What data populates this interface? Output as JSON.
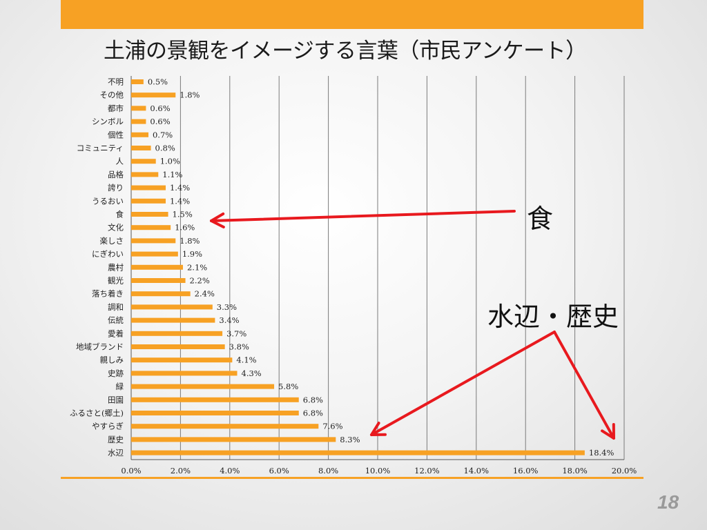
{
  "slide": {
    "title": "土浦の景観をイメージする言葉（市民アンケート）",
    "page_number": "18",
    "accent_color": "#f7a124"
  },
  "callouts": {
    "food": "食",
    "waterside_history": "水辺・歴史",
    "arrow_color": "#e8191e"
  },
  "chart_data": {
    "type": "bar",
    "orientation": "horizontal",
    "title": "",
    "xlabel": "",
    "ylabel": "",
    "xlim": [
      0,
      20
    ],
    "x_ticks": [
      "0.0%",
      "2.0%",
      "4.0%",
      "6.0%",
      "8.0%",
      "10.0%",
      "12.0%",
      "14.0%",
      "16.0%",
      "18.0%",
      "20.0%"
    ],
    "grid": "vertical",
    "bar_color": "#f7a124",
    "categories": [
      "不明",
      "その他",
      "都市",
      "シンボル",
      "個性",
      "コミュニティ",
      "人",
      "品格",
      "誇り",
      "うるおい",
      "食",
      "文化",
      "楽しさ",
      "にぎわい",
      "農村",
      "観光",
      "落ち着き",
      "調和",
      "伝統",
      "愛着",
      "地域ブランド",
      "親しみ",
      "史跡",
      "緑",
      "田園",
      "ふるさと(郷土)",
      "やすらぎ",
      "歴史",
      "水辺"
    ],
    "values": [
      0.5,
      1.8,
      0.6,
      0.6,
      0.7,
      0.8,
      1.0,
      1.1,
      1.4,
      1.4,
      1.5,
      1.6,
      1.8,
      1.9,
      2.1,
      2.2,
      2.4,
      3.3,
      3.4,
      3.7,
      3.8,
      4.1,
      4.3,
      5.8,
      6.8,
      6.8,
      7.6,
      8.3,
      18.4
    ],
    "value_labels": [
      "0.5%",
      "1.8%",
      "0.6%",
      "0.6%",
      "0.7%",
      "0.8%",
      "1.0%",
      "1.1%",
      "1.4%",
      "1.4%",
      "1.5%",
      "1.6%",
      "1.8%",
      "1.9%",
      "2.1%",
      "2.2%",
      "2.4%",
      "3.3%",
      "3.4%",
      "3.7%",
      "3.8%",
      "4.1%",
      "4.3%",
      "5.8%",
      "6.8%",
      "6.8%",
      "7.6%",
      "8.3%",
      "18.4%"
    ]
  }
}
